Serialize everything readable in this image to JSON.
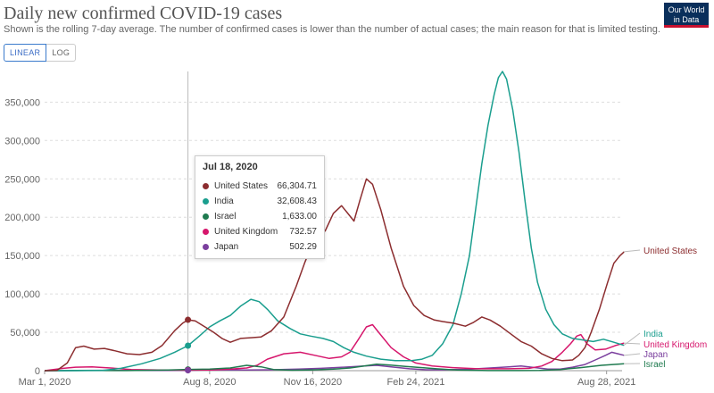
{
  "header": {
    "title": "Daily new confirmed COVID-19 cases",
    "subtitle": "Shown is the rolling 7-day average. The number of confirmed cases is lower than the number of actual cases; the main reason for that is limited testing.",
    "logo_line1": "Our World",
    "logo_line2": "in Data"
  },
  "scale_toggle": {
    "linear": "LINEAR",
    "log": "LOG",
    "selected": "LINEAR"
  },
  "tooltip": {
    "date": "Jul 18, 2020",
    "rows": [
      {
        "name": "United States",
        "value": "66,304.71",
        "color": "#8c2d2f"
      },
      {
        "name": "India",
        "value": "32,608.43",
        "color": "#1a9e8e"
      },
      {
        "name": "Israel",
        "value": "1,633.00",
        "color": "#1f7a4f"
      },
      {
        "name": "United Kingdom",
        "value": "732.57",
        "color": "#d6166c"
      },
      {
        "name": "Japan",
        "value": "502.29",
        "color": "#7b3f9e"
      }
    ]
  },
  "chart_data": {
    "type": "line",
    "title": "Daily new confirmed COVID-19 cases",
    "xlabel": "",
    "ylabel": "",
    "ylim": [
      0,
      390000
    ],
    "x_ticks": [
      "Mar 1, 2020",
      "Aug 8, 2020",
      "Nov 16, 2020",
      "Feb 24, 2021",
      "Aug 28, 2021"
    ],
    "y_ticks": [
      0,
      50000,
      100000,
      150000,
      200000,
      250000,
      300000,
      350000
    ],
    "y_tick_labels": [
      "0",
      "50,000",
      "100,000",
      "150,000",
      "200,000",
      "250,000",
      "300,000",
      "350,000"
    ],
    "x_domain_days": [
      0,
      560
    ],
    "x_tick_days": [
      0,
      160,
      260,
      360,
      545
    ],
    "hover_day": 139,
    "series": [
      {
        "name": "United States",
        "color": "#8c2d2f",
        "points": [
          [
            0,
            0
          ],
          [
            12,
            500
          ],
          [
            22,
            10000
          ],
          [
            30,
            30000
          ],
          [
            38,
            32000
          ],
          [
            48,
            28000
          ],
          [
            58,
            29000
          ],
          [
            68,
            26000
          ],
          [
            80,
            22000
          ],
          [
            92,
            21000
          ],
          [
            104,
            24000
          ],
          [
            114,
            33000
          ],
          [
            126,
            52000
          ],
          [
            134,
            62000
          ],
          [
            139,
            66300
          ],
          [
            146,
            65000
          ],
          [
            152,
            60000
          ],
          [
            158,
            55000
          ],
          [
            164,
            50000
          ],
          [
            172,
            42000
          ],
          [
            180,
            37000
          ],
          [
            190,
            42000
          ],
          [
            200,
            43000
          ],
          [
            210,
            44000
          ],
          [
            220,
            52000
          ],
          [
            232,
            70000
          ],
          [
            244,
            110000
          ],
          [
            252,
            140000
          ],
          [
            258,
            160000
          ],
          [
            264,
            178000
          ],
          [
            272,
            182000
          ],
          [
            280,
            205000
          ],
          [
            288,
            215000
          ],
          [
            294,
            205000
          ],
          [
            300,
            195000
          ],
          [
            306,
            223000
          ],
          [
            312,
            250000
          ],
          [
            318,
            243000
          ],
          [
            326,
            210000
          ],
          [
            336,
            160000
          ],
          [
            348,
            110000
          ],
          [
            358,
            85000
          ],
          [
            368,
            72000
          ],
          [
            378,
            66000
          ],
          [
            386,
            64000
          ],
          [
            396,
            62000
          ],
          [
            408,
            58000
          ],
          [
            416,
            63000
          ],
          [
            424,
            70000
          ],
          [
            432,
            66000
          ],
          [
            442,
            58000
          ],
          [
            452,
            48000
          ],
          [
            462,
            38000
          ],
          [
            472,
            32000
          ],
          [
            482,
            22000
          ],
          [
            492,
            16000
          ],
          [
            502,
            13000
          ],
          [
            512,
            14000
          ],
          [
            518,
            20000
          ],
          [
            524,
            30000
          ],
          [
            530,
            50000
          ],
          [
            538,
            80000
          ],
          [
            546,
            115000
          ],
          [
            552,
            140000
          ],
          [
            558,
            150000
          ],
          [
            562,
            155000
          ]
        ]
      },
      {
        "name": "India",
        "color": "#1a9e8e",
        "points": [
          [
            0,
            0
          ],
          [
            30,
            0
          ],
          [
            56,
            200
          ],
          [
            74,
            3000
          ],
          [
            94,
            9000
          ],
          [
            112,
            16000
          ],
          [
            126,
            24000
          ],
          [
            139,
            32600
          ],
          [
            150,
            45000
          ],
          [
            160,
            57000
          ],
          [
            170,
            65000
          ],
          [
            180,
            72000
          ],
          [
            190,
            84000
          ],
          [
            200,
            93000
          ],
          [
            208,
            90000
          ],
          [
            216,
            80000
          ],
          [
            226,
            65000
          ],
          [
            238,
            55000
          ],
          [
            248,
            48000
          ],
          [
            258,
            45000
          ],
          [
            270,
            42000
          ],
          [
            280,
            38000
          ],
          [
            290,
            30000
          ],
          [
            300,
            24000
          ],
          [
            312,
            19000
          ],
          [
            326,
            15000
          ],
          [
            340,
            13000
          ],
          [
            356,
            13000
          ],
          [
            366,
            15000
          ],
          [
            376,
            20000
          ],
          [
            386,
            35000
          ],
          [
            396,
            60000
          ],
          [
            404,
            100000
          ],
          [
            412,
            150000
          ],
          [
            418,
            210000
          ],
          [
            424,
            270000
          ],
          [
            430,
            320000
          ],
          [
            436,
            360000
          ],
          [
            440,
            382000
          ],
          [
            444,
            390000
          ],
          [
            448,
            380000
          ],
          [
            454,
            340000
          ],
          [
            460,
            285000
          ],
          [
            466,
            220000
          ],
          [
            472,
            160000
          ],
          [
            478,
            115000
          ],
          [
            486,
            80000
          ],
          [
            494,
            60000
          ],
          [
            502,
            48000
          ],
          [
            512,
            42000
          ],
          [
            522,
            40000
          ],
          [
            532,
            38000
          ],
          [
            542,
            41000
          ],
          [
            552,
            37000
          ],
          [
            562,
            33000
          ]
        ]
      },
      {
        "name": "Israel",
        "color": "#1f7a4f",
        "points": [
          [
            0,
            0
          ],
          [
            40,
            300
          ],
          [
            80,
            100
          ],
          [
            120,
            800
          ],
          [
            139,
            1600
          ],
          [
            160,
            2000
          ],
          [
            180,
            3500
          ],
          [
            196,
            7000
          ],
          [
            210,
            5000
          ],
          [
            222,
            1500
          ],
          [
            240,
            600
          ],
          [
            260,
            1000
          ],
          [
            280,
            2000
          ],
          [
            296,
            3500
          ],
          [
            310,
            6000
          ],
          [
            322,
            8500
          ],
          [
            334,
            7500
          ],
          [
            350,
            5500
          ],
          [
            366,
            4000
          ],
          [
            380,
            2500
          ],
          [
            400,
            800
          ],
          [
            430,
            100
          ],
          [
            460,
            100
          ],
          [
            480,
            200
          ],
          [
            500,
            1500
          ],
          [
            520,
            4000
          ],
          [
            540,
            7000
          ],
          [
            562,
            9000
          ]
        ]
      },
      {
        "name": "United Kingdom",
        "color": "#d6166c",
        "points": [
          [
            0,
            0
          ],
          [
            18,
            3000
          ],
          [
            30,
            4500
          ],
          [
            46,
            5000
          ],
          [
            64,
            3500
          ],
          [
            84,
            1500
          ],
          [
            110,
            800
          ],
          [
            139,
            700
          ],
          [
            160,
            900
          ],
          [
            180,
            2000
          ],
          [
            196,
            3500
          ],
          [
            206,
            7000
          ],
          [
            216,
            15000
          ],
          [
            232,
            22000
          ],
          [
            248,
            24000
          ],
          [
            262,
            20000
          ],
          [
            276,
            16000
          ],
          [
            288,
            18000
          ],
          [
            296,
            24000
          ],
          [
            304,
            40000
          ],
          [
            312,
            57000
          ],
          [
            318,
            60000
          ],
          [
            324,
            50000
          ],
          [
            336,
            30000
          ],
          [
            348,
            18000
          ],
          [
            360,
            10000
          ],
          [
            376,
            6000
          ],
          [
            396,
            4000
          ],
          [
            420,
            2500
          ],
          [
            450,
            2500
          ],
          [
            470,
            3000
          ],
          [
            482,
            6000
          ],
          [
            492,
            12000
          ],
          [
            502,
            24000
          ],
          [
            510,
            35000
          ],
          [
            516,
            45000
          ],
          [
            520,
            47000
          ],
          [
            526,
            35000
          ],
          [
            534,
            27000
          ],
          [
            544,
            28000
          ],
          [
            554,
            33000
          ],
          [
            562,
            36000
          ]
        ]
      },
      {
        "name": "Japan",
        "color": "#7b3f9e",
        "points": [
          [
            0,
            0
          ],
          [
            30,
            200
          ],
          [
            54,
            500
          ],
          [
            80,
            200
          ],
          [
            110,
            300
          ],
          [
            139,
            500
          ],
          [
            156,
            1100
          ],
          [
            176,
            1000
          ],
          [
            196,
            900
          ],
          [
            220,
            1200
          ],
          [
            246,
            2000
          ],
          [
            268,
            3000
          ],
          [
            290,
            4500
          ],
          [
            310,
            6000
          ],
          [
            322,
            7000
          ],
          [
            336,
            5000
          ],
          [
            354,
            2500
          ],
          [
            370,
            1200
          ],
          [
            388,
            1200
          ],
          [
            410,
            1800
          ],
          [
            432,
            3500
          ],
          [
            450,
            5000
          ],
          [
            462,
            6000
          ],
          [
            476,
            4000
          ],
          [
            488,
            2000
          ],
          [
            500,
            2000
          ],
          [
            512,
            4500
          ],
          [
            524,
            8000
          ],
          [
            534,
            14000
          ],
          [
            544,
            20000
          ],
          [
            550,
            24000
          ],
          [
            556,
            22000
          ],
          [
            562,
            20000
          ]
        ]
      }
    ],
    "end_labels": [
      {
        "name": "United States",
        "color": "#8c2d2f"
      },
      {
        "name": "India",
        "color": "#1a9e8e"
      },
      {
        "name": "United Kingdom",
        "color": "#d6166c"
      },
      {
        "name": "Japan",
        "color": "#7b3f9e"
      },
      {
        "name": "Israel",
        "color": "#1f7a4f"
      }
    ]
  }
}
